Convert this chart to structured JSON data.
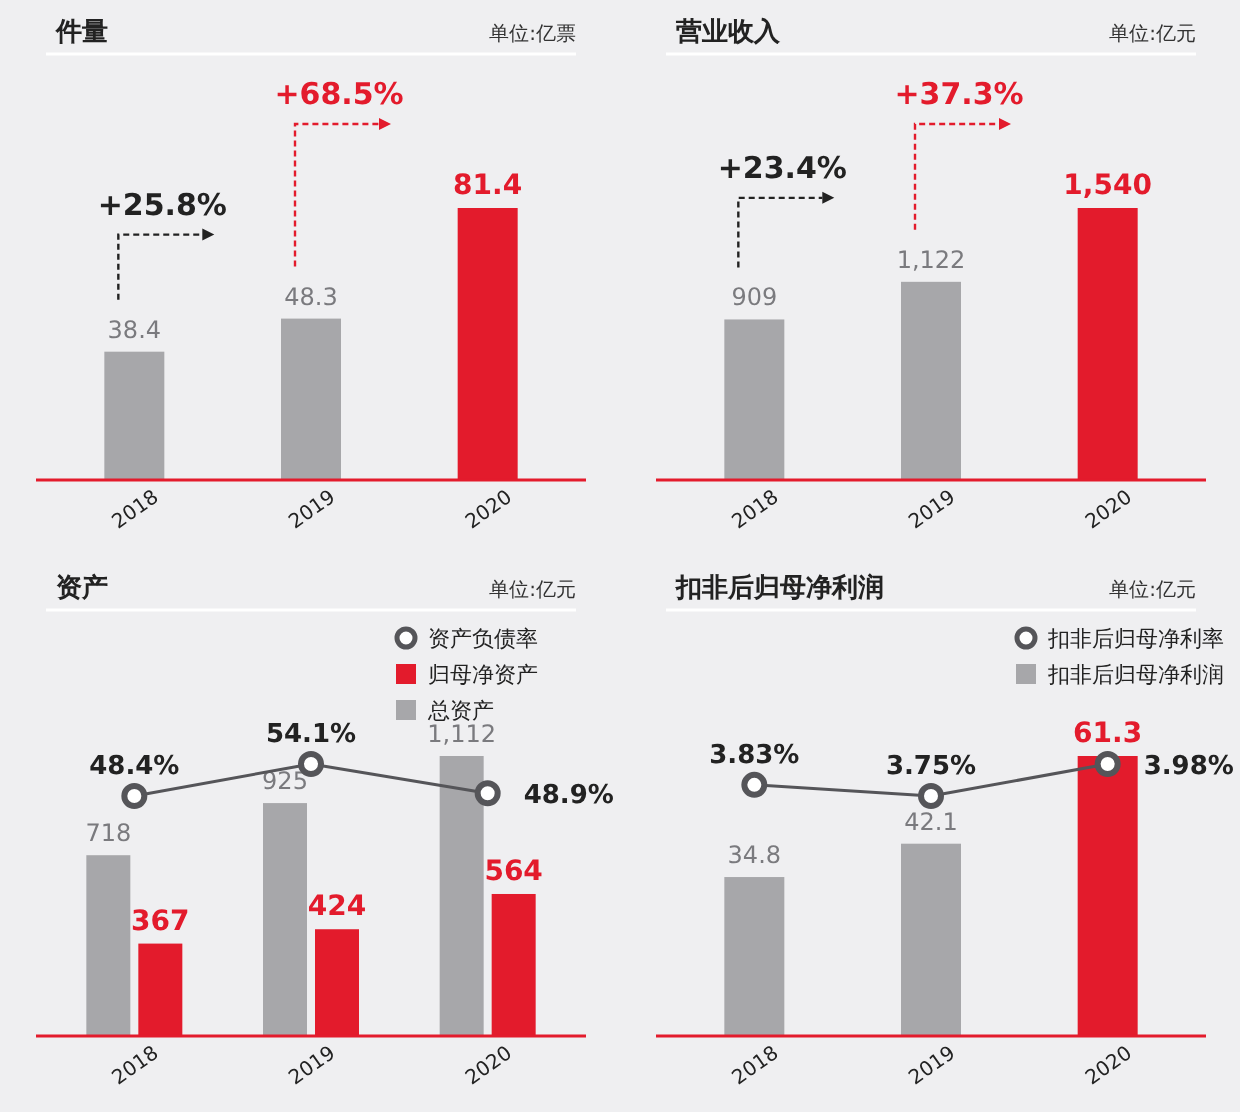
{
  "chart_data": [
    {
      "type": "bar",
      "title": "件量",
      "subtitle": "单位:亿票",
      "categories": [
        "2018",
        "2019",
        "2020"
      ],
      "values": [
        38.4,
        48.3,
        81.4
      ],
      "colors": [
        "#a7a7aa",
        "#a7a7aa",
        "#e31b2c"
      ],
      "data_labels": true,
      "annotations": [
        "+25.8%",
        "+68.5%"
      ]
    },
    {
      "type": "bar",
      "title": "营业收入",
      "subtitle": "单位:亿元",
      "categories": [
        "2018",
        "2019",
        "2020"
      ],
      "values": [
        909,
        1122,
        1540
      ],
      "colors": [
        "#a7a7aa",
        "#a7a7aa",
        "#e31b2c"
      ],
      "data_labels": true,
      "value_labels": [
        "909",
        "1,122",
        "1,540"
      ],
      "annotations": [
        "+23.4%",
        "+37.3%"
      ]
    },
    {
      "type": "bar",
      "title": "资产",
      "subtitle": "单位:亿元",
      "categories": [
        "2018",
        "2019",
        "2020"
      ],
      "legend": "top right",
      "data_labels": true,
      "marker": "circle",
      "series": [
        {
          "name": "总资产",
          "color": "#a7a7aa",
          "values": [
            718,
            925,
            1112
          ],
          "value_labels": [
            "718",
            "925",
            "1,112"
          ]
        },
        {
          "name": "归母净资产",
          "color": "#e31b2c",
          "values": [
            367,
            424,
            564
          ]
        },
        {
          "name": "资产负债率",
          "type": "line",
          "axis": "y2",
          "color": "#555559",
          "values": [
            48.4,
            54.1,
            48.9
          ],
          "value_labels": [
            "48.4%",
            "54.1%",
            "48.9%"
          ]
        }
      ]
    },
    {
      "type": "bar",
      "title": "扣非后归母净利润",
      "subtitle": "单位:亿元",
      "categories": [
        "2018",
        "2019",
        "2020"
      ],
      "legend": "top right",
      "data_labels": true,
      "marker": "circle",
      "series": [
        {
          "name": "扣非后归母净利润",
          "color": "#a7a7aa",
          "colors": [
            "#a7a7aa",
            "#a7a7aa",
            "#e31b2c"
          ],
          "values": [
            34.8,
            42.1,
            61.3
          ]
        },
        {
          "name": "扣非后归母净利率",
          "type": "line",
          "axis": "y2",
          "color": "#555559",
          "values": [
            3.83,
            3.75,
            3.98
          ],
          "value_labels": [
            "3.83%",
            "3.75%",
            "3.98%"
          ]
        }
      ]
    }
  ]
}
